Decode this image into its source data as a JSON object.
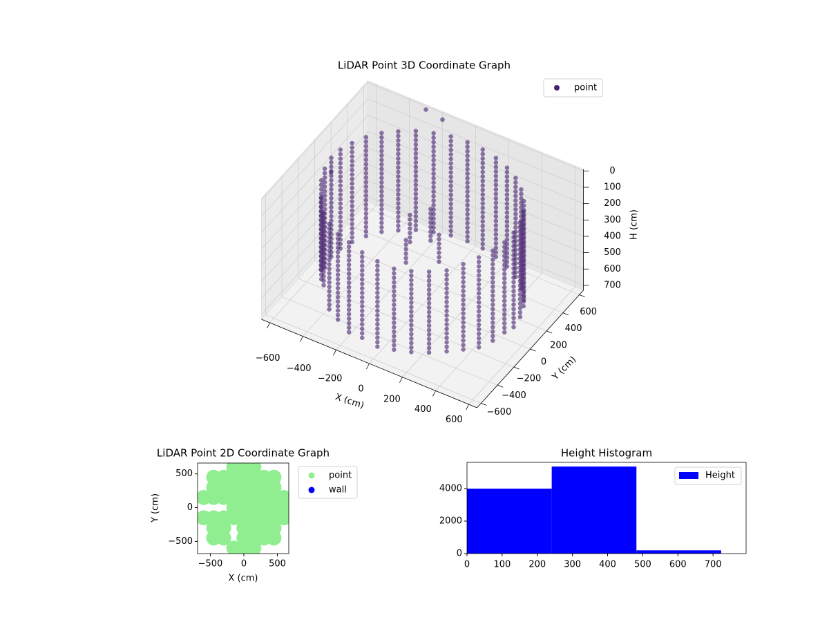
{
  "chart_data": [
    {
      "type": "scatter3d",
      "title": "LiDAR Point 3D Coordinate Graph",
      "xlabel": "X (cm)",
      "ylabel": "Y (cm)",
      "zlabel": "H (cm)",
      "xlim": [
        -650,
        650
      ],
      "ylim": [
        -650,
        650
      ],
      "zlim": [
        730,
        -10
      ],
      "xticks": [
        {
          "value": -600,
          "label": "−600"
        },
        {
          "value": -400,
          "label": "−400"
        },
        {
          "value": -200,
          "label": "−200"
        },
        0,
        200,
        400,
        600
      ],
      "yticks": [
        {
          "value": -600,
          "label": "−600"
        },
        {
          "value": -400,
          "label": "−400"
        },
        {
          "value": -200,
          "label": "−200"
        },
        0,
        200,
        400,
        600
      ],
      "zticks": [
        0,
        100,
        200,
        300,
        400,
        500,
        600,
        700
      ],
      "grid": true,
      "legend": "upper right",
      "series": [
        {
          "name": "point",
          "color": "#46216f",
          "x": [
            550,
            542,
            517,
            476,
            421,
            354,
            275,
            188,
            96,
            0,
            -96,
            -188,
            -275,
            -354,
            -421,
            -476,
            -517,
            -542,
            -550,
            -542,
            -517,
            -476,
            -421,
            -354,
            -275,
            -188,
            -96,
            0,
            96,
            188,
            275,
            354,
            421,
            476,
            517,
            542,
            -100,
            0,
            100,
            -50,
            -300,
            -200,
            -650
          ],
          "y": [
            0,
            96,
            188,
            275,
            354,
            421,
            476,
            517,
            542,
            550,
            542,
            517,
            476,
            421,
            354,
            275,
            188,
            96,
            0,
            -96,
            -188,
            -275,
            -354,
            -421,
            -476,
            -517,
            -542,
            -550,
            -542,
            -517,
            -476,
            -421,
            -354,
            -275,
            -188,
            -96,
            50,
            100,
            0,
            -100,
            650,
            650,
            200
          ],
          "hmin": [
            60,
            55,
            50,
            50,
            45,
            40,
            40,
            40,
            40,
            40,
            40,
            45,
            45,
            50,
            50,
            55,
            60,
            60,
            60,
            70,
            80,
            120,
            150,
            150,
            150,
            140,
            150,
            160,
            170,
            160,
            150,
            140,
            110,
            90,
            80,
            70,
            250,
            200,
            260,
            300,
            20,
            40,
            300
          ],
          "hmax": [
            640,
            650,
            650,
            660,
            660,
            660,
            660,
            660,
            660,
            650,
            650,
            650,
            660,
            660,
            660,
            670,
            680,
            690,
            690,
            690,
            690,
            560,
            600,
            680,
            690,
            690,
            690,
            690,
            690,
            680,
            670,
            660,
            650,
            650,
            640,
            640,
            420,
            400,
            450,
            450,
            20,
            40,
            300
          ]
        }
      ]
    },
    {
      "type": "scatter",
      "title": "LiDAR Point 2D Coordinate Graph",
      "xlabel": "X (cm)",
      "ylabel": "Y (cm)",
      "xlim": [
        -690,
        670
      ],
      "ylim": [
        -680,
        660
      ],
      "xticks": [
        {
          "value": -500,
          "label": "−500"
        },
        0,
        500
      ],
      "yticks": [
        {
          "value": -500,
          "label": "−500"
        },
        0,
        500
      ],
      "legend": "outside right",
      "series": [
        {
          "name": "point",
          "color": "#90ee90",
          "x": [
            -600,
            -600,
            -450,
            -450,
            -450,
            -450,
            -450,
            -450,
            -300,
            -300,
            -300,
            -300,
            -300,
            -300,
            -150,
            -150,
            -150,
            -150,
            -150,
            -150,
            -150,
            0,
            0,
            0,
            0,
            0,
            0,
            0,
            0,
            0,
            150,
            150,
            150,
            150,
            150,
            150,
            150,
            150,
            150,
            300,
            300,
            300,
            300,
            300,
            300,
            300,
            450,
            450,
            450,
            450,
            450,
            450,
            450,
            600,
            600,
            600
          ],
          "y": [
            -150,
            150,
            -450,
            -300,
            -150,
            150,
            300,
            450,
            -450,
            -300,
            -150,
            150,
            300,
            450,
            -600,
            -150,
            0,
            150,
            300,
            450,
            600,
            -600,
            -450,
            -300,
            -150,
            0,
            150,
            300,
            450,
            600,
            -600,
            -450,
            -300,
            -150,
            0,
            150,
            300,
            450,
            600,
            -450,
            -300,
            -150,
            0,
            150,
            300,
            450,
            -450,
            -300,
            -150,
            0,
            150,
            300,
            450,
            -150,
            0,
            150
          ]
        },
        {
          "name": "wall",
          "color": "#0000ff",
          "x": [],
          "y": []
        }
      ]
    },
    {
      "type": "histogram",
      "title": "Height Histogram",
      "xlim": [
        0,
        794
      ],
      "ylim": [
        0,
        5617
      ],
      "xticks": [
        0,
        100,
        200,
        300,
        400,
        500,
        600,
        700
      ],
      "yticks": [
        0,
        2000,
        4000
      ],
      "bins": [
        0,
        241,
        482,
        723
      ],
      "legend": "upper right",
      "series": [
        {
          "name": "Height",
          "color": "#0000ff",
          "values": [
            4000,
            5360,
            200
          ]
        }
      ]
    }
  ]
}
